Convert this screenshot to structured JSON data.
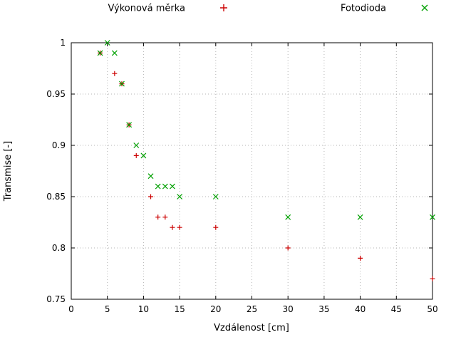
{
  "chart_data": {
    "type": "scatter",
    "title": "",
    "xlabel": "Vzdálenost [cm]",
    "ylabel": "Transmise [-]",
    "xlim": [
      0,
      50
    ],
    "ylim": [
      0.75,
      1.0
    ],
    "grid": true,
    "legend_position": "top-outside",
    "xticks": {
      "values": [
        0,
        5,
        10,
        15,
        20,
        25,
        30,
        35,
        40,
        45,
        50
      ],
      "labels": [
        "0",
        "5",
        "10",
        "15",
        "20",
        "25",
        "30",
        "35",
        "40",
        "45",
        "50"
      ]
    },
    "yticks": {
      "values": [
        0.75,
        0.8,
        0.85,
        0.9,
        0.95,
        1.0
      ],
      "labels": [
        "0.75",
        "0.8",
        "0.85",
        "0.9",
        "0.95",
        "1"
      ]
    },
    "series": [
      {
        "name": "Výkonová měrka",
        "marker": "plus",
        "color": "#cc0000",
        "points": [
          [
            4,
            0.99
          ],
          [
            6,
            0.97
          ],
          [
            7,
            0.96
          ],
          [
            8,
            0.92
          ],
          [
            9,
            0.89
          ],
          [
            11,
            0.85
          ],
          [
            12,
            0.83
          ],
          [
            13,
            0.83
          ],
          [
            14,
            0.82
          ],
          [
            15,
            0.82
          ],
          [
            20,
            0.82
          ],
          [
            30,
            0.8
          ],
          [
            40,
            0.79
          ],
          [
            50,
            0.77
          ]
        ]
      },
      {
        "name": "Fotodioda",
        "marker": "cross",
        "color": "#00a000",
        "points": [
          [
            4,
            0.99
          ],
          [
            5,
            1.0
          ],
          [
            6,
            0.99
          ],
          [
            7,
            0.96
          ],
          [
            8,
            0.92
          ],
          [
            9,
            0.9
          ],
          [
            10,
            0.89
          ],
          [
            11,
            0.87
          ],
          [
            12,
            0.86
          ],
          [
            13,
            0.86
          ],
          [
            14,
            0.86
          ],
          [
            15,
            0.85
          ],
          [
            20,
            0.85
          ],
          [
            30,
            0.83
          ],
          [
            40,
            0.83
          ],
          [
            50,
            0.83
          ]
        ]
      }
    ]
  }
}
